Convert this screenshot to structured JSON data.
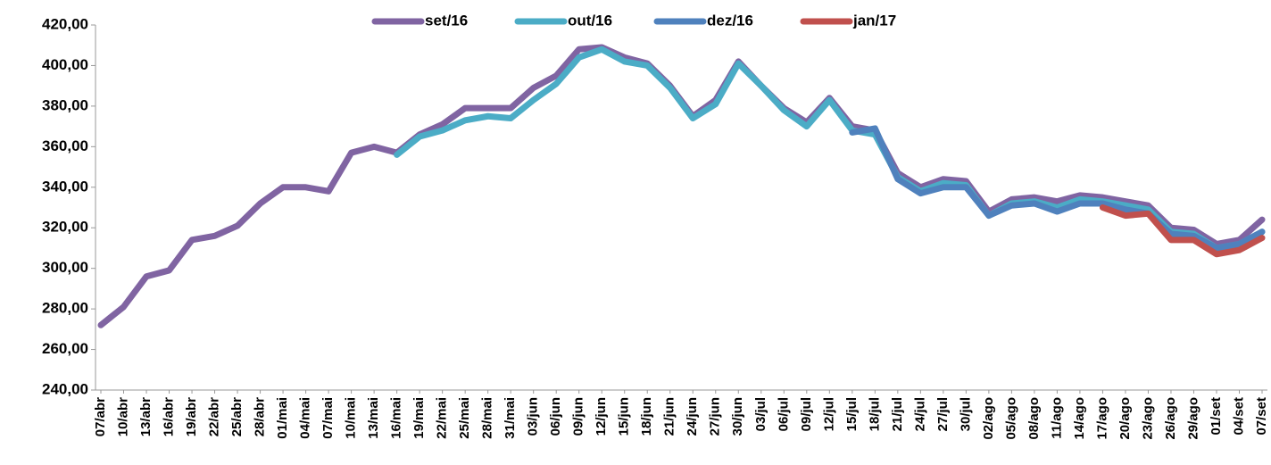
{
  "chart_data": {
    "type": "line",
    "categories": [
      "07/abr",
      "10/abr",
      "13/abr",
      "16/abr",
      "19/abr",
      "22/abr",
      "25/abr",
      "28/abr",
      "01/mai",
      "04/mai",
      "07/mai",
      "10/mai",
      "13/mai",
      "16/mai",
      "19/mai",
      "22/mai",
      "25/mai",
      "28/mai",
      "31/mai",
      "03/jun",
      "06/jun",
      "09/jun",
      "12/jun",
      "15/jun",
      "18/jun",
      "21/jun",
      "24/jun",
      "27/jun",
      "30/jun",
      "03/jul",
      "06/jul",
      "09/jul",
      "12/jul",
      "15/jul",
      "18/jul",
      "21/jul",
      "24/jul",
      "27/jul",
      "30/jul",
      "02/ago",
      "05/ago",
      "08/ago",
      "11/ago",
      "14/ago",
      "17/ago",
      "20/ago",
      "23/ago",
      "26/ago",
      "29/ago",
      "01/set",
      "04/set",
      "07/set"
    ],
    "series": [
      {
        "name": "set/16",
        "color": "#8064a2",
        "values": [
          272,
          281,
          296,
          299,
          314,
          316,
          321,
          332,
          340,
          340,
          338,
          357,
          360,
          357,
          366,
          371,
          379,
          379,
          379,
          389,
          395,
          408,
          409,
          404,
          401,
          390,
          375,
          383,
          402,
          390,
          379,
          372,
          384,
          370,
          368,
          347,
          340,
          344,
          343,
          328,
          334,
          335,
          333,
          336,
          335,
          333,
          331,
          320,
          319,
          312,
          314,
          324
        ]
      },
      {
        "name": "out/16",
        "color": "#4bacc6",
        "values": [
          null,
          null,
          null,
          null,
          null,
          null,
          null,
          null,
          null,
          null,
          null,
          null,
          null,
          356,
          365,
          368,
          373,
          375,
          374,
          383,
          391,
          404,
          408,
          402,
          400,
          389,
          374,
          381,
          401,
          390,
          378,
          370,
          383,
          368,
          366,
          345,
          338,
          342,
          341,
          326,
          332,
          333,
          330,
          334,
          333,
          331,
          329,
          318,
          317,
          310,
          312,
          318
        ]
      },
      {
        "name": "dez/16",
        "color": "#4f81bd",
        "values": [
          null,
          null,
          null,
          null,
          null,
          null,
          null,
          null,
          null,
          null,
          null,
          null,
          null,
          null,
          null,
          null,
          null,
          null,
          null,
          null,
          null,
          null,
          null,
          null,
          null,
          null,
          null,
          null,
          null,
          null,
          null,
          null,
          null,
          367,
          369,
          344,
          337,
          340,
          340,
          326,
          331,
          332,
          328,
          332,
          332,
          329,
          327,
          317,
          316,
          310,
          312,
          318
        ]
      },
      {
        "name": "jan/17",
        "color": "#c0504d",
        "values": [
          null,
          null,
          null,
          null,
          null,
          null,
          null,
          null,
          null,
          null,
          null,
          null,
          null,
          null,
          null,
          null,
          null,
          null,
          null,
          null,
          null,
          null,
          null,
          null,
          null,
          null,
          null,
          null,
          null,
          null,
          null,
          null,
          null,
          null,
          null,
          null,
          null,
          null,
          null,
          null,
          null,
          null,
          null,
          null,
          330,
          326,
          327,
          314,
          314,
          307,
          309,
          315
        ]
      }
    ],
    "ylim": [
      240,
      420
    ],
    "yticks": [
      {
        "value": 240,
        "label": "240,00"
      },
      {
        "value": 260,
        "label": "260,00"
      },
      {
        "value": 280,
        "label": "280,00"
      },
      {
        "value": 300,
        "label": "300,00"
      },
      {
        "value": 320,
        "label": "320,00"
      },
      {
        "value": 340,
        "label": "340,00"
      },
      {
        "value": 360,
        "label": "360,00"
      },
      {
        "value": 380,
        "label": "380,00"
      },
      {
        "value": 400,
        "label": "400,00"
      },
      {
        "value": 420,
        "label": "420,00"
      }
    ],
    "legend": "top"
  }
}
